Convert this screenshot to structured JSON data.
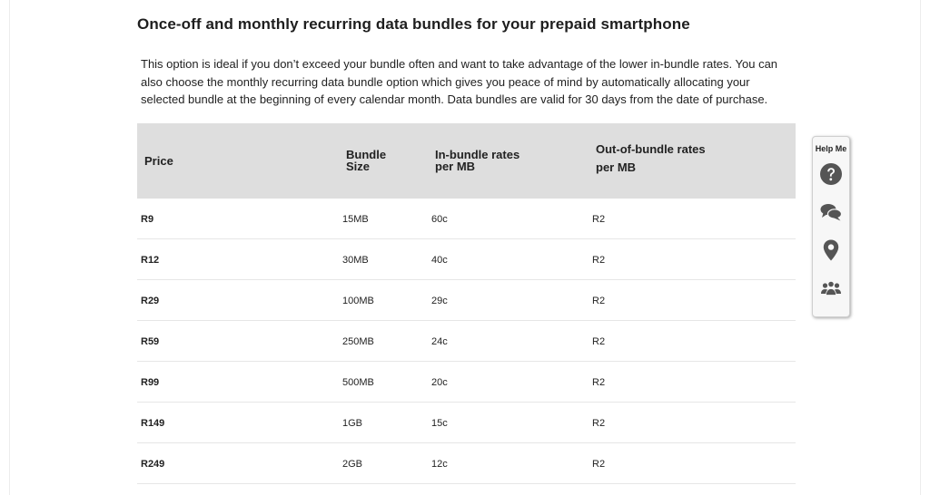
{
  "heading": "Once-off and monthly recurring data bundles for your prepaid smartphone",
  "intro": "This option is ideal if you don’t exceed your bundle often and want to take advantage of the lower in-bundle rates. You can also choose the monthly recurring data bundle option which gives you peace of mind by automatically allocating your selected bundle at the beginning of every calendar month. Data bundles are valid for 30 days from the date of purchase.",
  "table": {
    "headers": {
      "price": "Price",
      "size_line1": "Bundle",
      "size_line2": "Size",
      "in_line1": "In-bundle rates",
      "in_line2": "per MB",
      "out_line1": "Out-of-bundle rates",
      "out_line2": "per MB"
    },
    "rows": [
      {
        "price": "R9",
        "size": "15MB",
        "in_rate": "60c",
        "out_rate": "R2"
      },
      {
        "price": "R12",
        "size": "30MB",
        "in_rate": "40c",
        "out_rate": "R2"
      },
      {
        "price": "R29",
        "size": "100MB",
        "in_rate": "29c",
        "out_rate": "R2"
      },
      {
        "price": "R59",
        "size": "250MB",
        "in_rate": "24c",
        "out_rate": "R2"
      },
      {
        "price": "R99",
        "size": "500MB",
        "in_rate": "20c",
        "out_rate": "R2"
      },
      {
        "price": "R149",
        "size": "1GB",
        "in_rate": "15c",
        "out_rate": "R2"
      },
      {
        "price": "R249",
        "size": "2GB",
        "in_rate": "12c",
        "out_rate": "R2"
      }
    ]
  },
  "help_panel": {
    "title": "Help Me",
    "icons": [
      "question-icon",
      "chat-icon",
      "location-pin-icon",
      "community-icon"
    ],
    "icon_color": "#555555"
  }
}
